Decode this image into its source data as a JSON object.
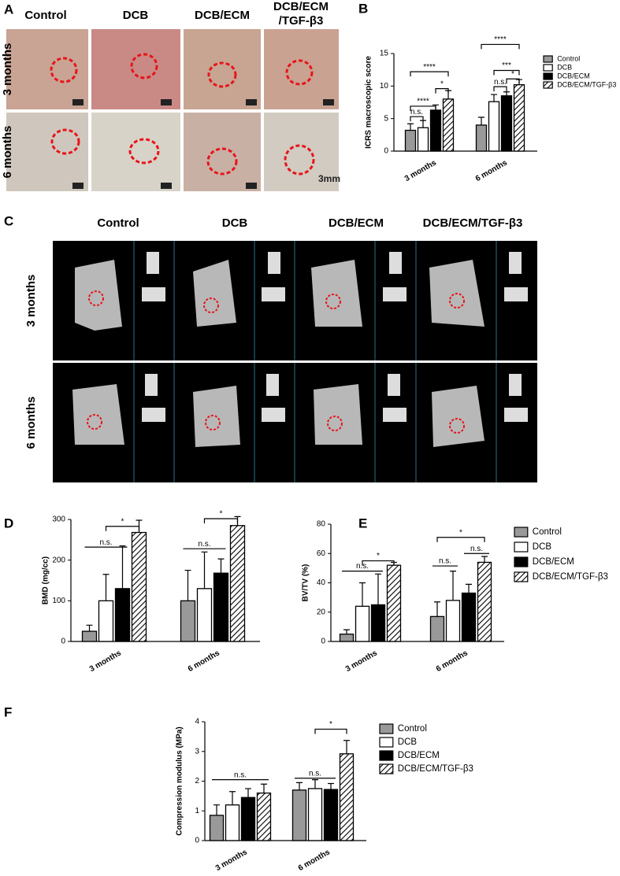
{
  "panels": {
    "A": {
      "label": "A",
      "columns": [
        "Control",
        "DCB",
        "DCB/ECM",
        "DCB/ECM",
        "/TGF-β3"
      ],
      "rows": [
        "3 months",
        "6 months"
      ],
      "scale": "3mm"
    },
    "C": {
      "label": "C",
      "columns": [
        "Control",
        "DCB",
        "DCB/ECM",
        "DCB/ECM/TGF-β3"
      ],
      "rows": [
        "3 months",
        "6 months"
      ]
    }
  },
  "chart_data": [
    {
      "type": "bar",
      "panel": "B",
      "ylabel": "ICRS macroscopic score",
      "categories": [
        "3 months",
        "6 months"
      ],
      "ylim": [
        0,
        15
      ],
      "yticks": [
        0,
        5,
        10,
        15
      ],
      "legend": "right",
      "series": [
        {
          "name": "Control",
          "color": "#999999",
          "values": [
            3.2,
            4.0
          ],
          "errors": [
            1.0,
            1.2
          ]
        },
        {
          "name": "DCB",
          "color": "#ffffff",
          "values": [
            3.6,
            7.6
          ],
          "errors": [
            1.1,
            1.1
          ]
        },
        {
          "name": "DCB/ECM",
          "color": "#000000",
          "values": [
            6.3,
            8.5
          ],
          "errors": [
            0.8,
            0.6
          ]
        },
        {
          "name": "DCB/ECM/TGF-β3",
          "color": "#ffffff",
          "hatch": true,
          "values": [
            8.0,
            10.2
          ],
          "errors": [
            1.3,
            0.8
          ]
        }
      ],
      "annotations": [
        "n.s.",
        "****",
        "****",
        "*",
        "****",
        "***",
        "n.s.",
        "*"
      ]
    },
    {
      "type": "bar",
      "panel": "D",
      "ylabel": "BMD (mg/cc)",
      "categories": [
        "3 months",
        "6 months"
      ],
      "ylim": [
        0,
        300
      ],
      "yticks": [
        0,
        100,
        200,
        300
      ],
      "series": [
        {
          "name": "Control",
          "color": "#999999",
          "values": [
            25,
            100
          ],
          "errors": [
            15,
            75
          ]
        },
        {
          "name": "DCB",
          "color": "#ffffff",
          "values": [
            100,
            130
          ],
          "errors": [
            65,
            90
          ]
        },
        {
          "name": "DCB/ECM",
          "color": "#000000",
          "values": [
            130,
            168
          ],
          "errors": [
            105,
            35
          ]
        },
        {
          "name": "DCB/ECM/TGF-β3",
          "color": "#ffffff",
          "hatch": true,
          "values": [
            268,
            285
          ],
          "errors": [
            30,
            22
          ]
        }
      ],
      "annotations": [
        "n.s.",
        "*",
        "n.s.",
        "*"
      ]
    },
    {
      "type": "bar",
      "panel": "E",
      "ylabel": "BV/TV (%)",
      "categories": [
        "3 months",
        "6 months"
      ],
      "ylim": [
        0,
        80
      ],
      "yticks": [
        0,
        20,
        40,
        60,
        80
      ],
      "legend": "right",
      "series": [
        {
          "name": "Control",
          "color": "#999999",
          "values": [
            5,
            17
          ],
          "errors": [
            3,
            10
          ]
        },
        {
          "name": "DCB",
          "color": "#ffffff",
          "values": [
            24,
            28
          ],
          "errors": [
            16,
            20
          ]
        },
        {
          "name": "DCB/ECM",
          "color": "#000000",
          "values": [
            25,
            33
          ],
          "errors": [
            21,
            6
          ]
        },
        {
          "name": "DCB/ECM/TGF-β3",
          "color": "#ffffff",
          "hatch": true,
          "values": [
            52,
            54
          ],
          "errors": [
            2,
            4
          ]
        }
      ],
      "annotations": [
        "n.s.",
        "*",
        "*",
        "n.s.",
        "n.s."
      ]
    },
    {
      "type": "bar",
      "panel": "F",
      "ylabel": "Compression modulus (MPa)",
      "categories": [
        "3 months",
        "6 months"
      ],
      "ylim": [
        0,
        4
      ],
      "yticks": [
        0,
        1,
        2,
        3,
        4
      ],
      "legend": "right",
      "series": [
        {
          "name": "Control",
          "color": "#999999",
          "values": [
            0.85,
            1.7
          ],
          "errors": [
            0.35,
            0.25
          ]
        },
        {
          "name": "DCB",
          "color": "#ffffff",
          "values": [
            1.2,
            1.75
          ],
          "errors": [
            0.45,
            0.3
          ]
        },
        {
          "name": "DCB/ECM",
          "color": "#000000",
          "values": [
            1.45,
            1.72
          ],
          "errors": [
            0.3,
            0.2
          ]
        },
        {
          "name": "DCB/ECM/TGF-β3",
          "color": "#ffffff",
          "hatch": true,
          "values": [
            1.6,
            2.92
          ],
          "errors": [
            0.3,
            0.45
          ]
        }
      ],
      "annotations": [
        "n.s.",
        "n.s.",
        "*"
      ]
    }
  ]
}
